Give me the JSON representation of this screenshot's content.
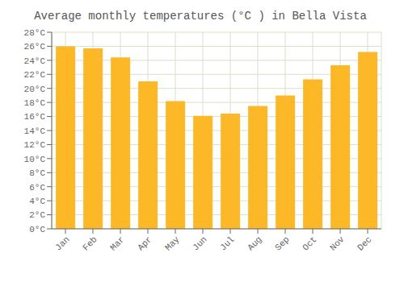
{
  "chart_data": {
    "type": "bar",
    "title": "Average monthly temperatures (°C ) in Bella Vista",
    "categories": [
      "Jan",
      "Feb",
      "Mar",
      "Apr",
      "May",
      "Jun",
      "Jul",
      "Aug",
      "Sep",
      "Oct",
      "Nov",
      "Dec"
    ],
    "values": [
      26.0,
      25.7,
      24.4,
      21.0,
      18.2,
      16.1,
      16.4,
      17.5,
      19.0,
      21.3,
      23.3,
      25.2
    ],
    "color": "#FDB827",
    "ylim": [
      0,
      28
    ],
    "yticks": [
      {
        "value": 0,
        "label": "0°C"
      },
      {
        "value": 2,
        "label": "2°C"
      },
      {
        "value": 4,
        "label": "4°C"
      },
      {
        "value": 6,
        "label": "6°C"
      },
      {
        "value": 8,
        "label": "8°C"
      },
      {
        "value": 10,
        "label": "10°C"
      },
      {
        "value": 12,
        "label": "12°C"
      },
      {
        "value": 14,
        "label": "14°C"
      },
      {
        "value": 16,
        "label": "16°C"
      },
      {
        "value": 18,
        "label": "18°C"
      },
      {
        "value": 20,
        "label": "20°C"
      },
      {
        "value": 22,
        "label": "22°C"
      },
      {
        "value": 24,
        "label": "24°C"
      },
      {
        "value": 26,
        "label": "26°C"
      },
      {
        "value": 28,
        "label": "28°C"
      }
    ],
    "grid": true
  }
}
